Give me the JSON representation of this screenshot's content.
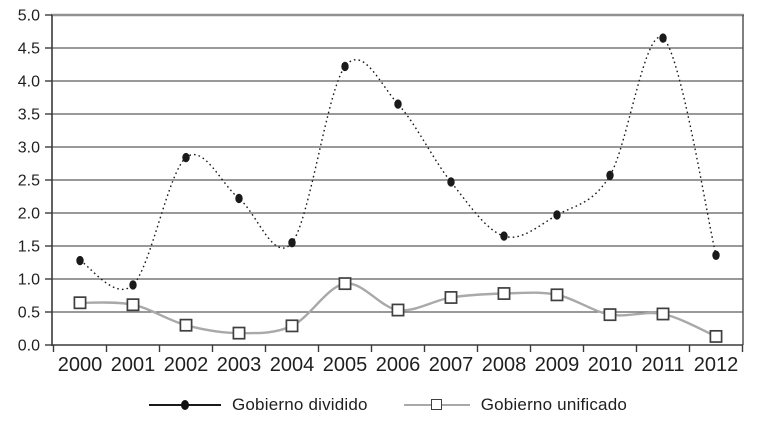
{
  "figure": {
    "background": "#ffffff",
    "text_color": "#1f1f1f"
  },
  "chart_data": {
    "type": "line",
    "title": "",
    "xlabel": "",
    "ylabel": "",
    "categories": [
      "2000",
      "2001",
      "2002",
      "2003",
      "2004",
      "2005",
      "2006",
      "2007",
      "2008",
      "2009",
      "2010",
      "2011",
      "2012"
    ],
    "series": [
      {
        "name": "Gobierno dividido",
        "marker": "filled-circle",
        "line_style": "dotted",
        "color": "#1a1a1a",
        "values": [
          1.28,
          0.91,
          2.84,
          2.22,
          1.55,
          4.22,
          3.65,
          2.47,
          1.65,
          1.97,
          2.57,
          4.65,
          1.36
        ]
      },
      {
        "name": "Gobierno unificado",
        "marker": "open-square",
        "marker_border_color": "#3f3f3f",
        "line_style": "solid",
        "color": "#a9a9a9",
        "values": [
          0.64,
          0.61,
          0.3,
          0.18,
          0.29,
          0.93,
          0.53,
          0.72,
          0.78,
          0.76,
          0.46,
          0.47,
          0.13
        ]
      }
    ],
    "ylim": [
      0,
      5
    ],
    "ytick_step": 0.5,
    "ytick_labels": [
      "0.0",
      "0.5",
      "1.0",
      "1.5",
      "2.0",
      "2.5",
      "3.0",
      "3.5",
      "4.0",
      "4.5",
      "5.0"
    ],
    "grid": true,
    "smoothed_lines": true,
    "legend_position": "bottom-center",
    "axis_colors": {
      "gridline": "#5c5c5c",
      "axis_line": "#3a3a3a",
      "top_border": "#919191",
      "right_border": "#4a4a4a"
    }
  }
}
